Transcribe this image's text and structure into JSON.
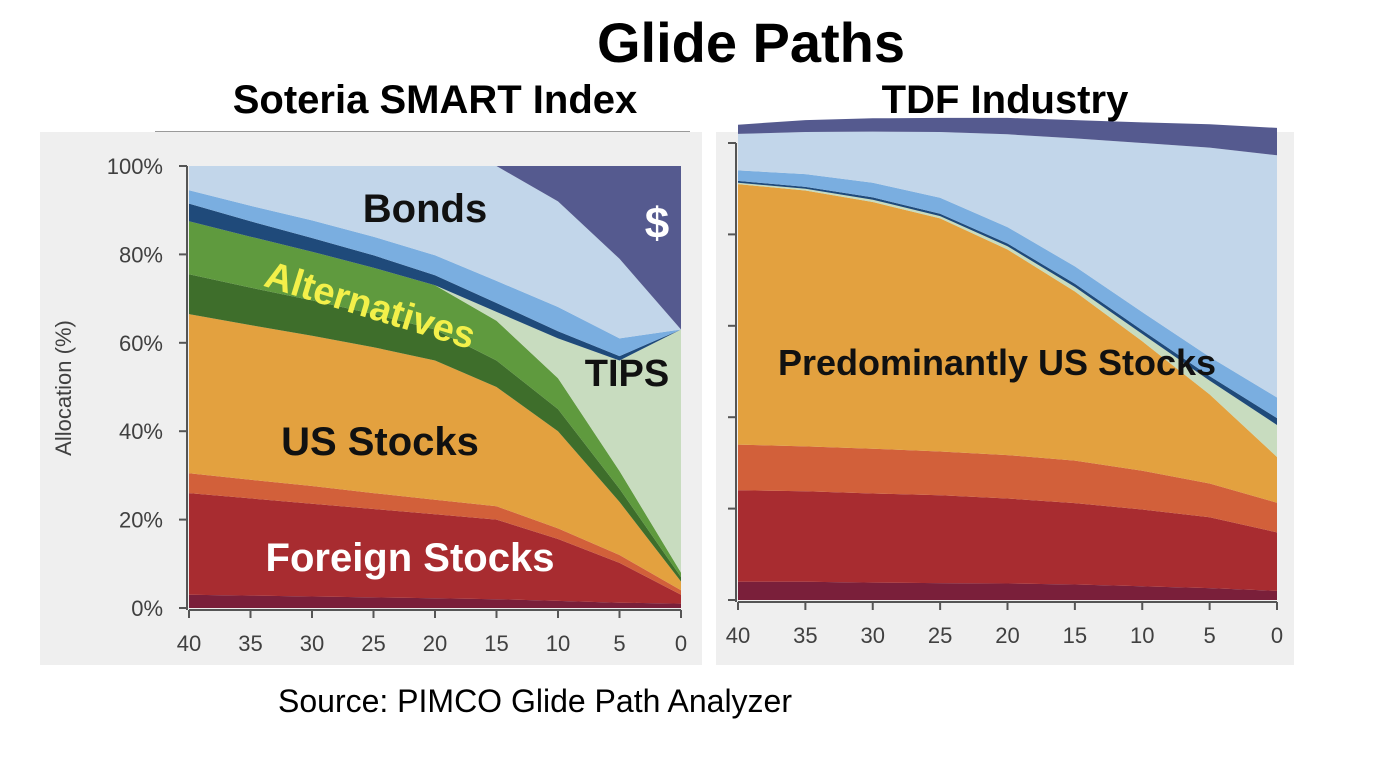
{
  "title": "Glide Paths",
  "source": "Source: PIMCO  Glide Path Analyzer",
  "colors": {
    "cash": "#555a8f",
    "bonds_light": "#c2d6ea",
    "bonds_mid": "#7aaee0",
    "bonds_dark": "#1f4a7a",
    "tips": "#c8dcbf",
    "alt_light": "#5f9a3e",
    "alt_dark": "#3e6e2b",
    "us_stocks": "#e3a13f",
    "foreign_light": "#d2603a",
    "foreign": "#a82c30",
    "em": "#7a1f3a",
    "panel_bg": "#efefef"
  },
  "chart_data": [
    {
      "type": "area",
      "title": "Soteria SMART Index",
      "ylabel": "Allocation (%)",
      "xlabel": "",
      "ylim": [
        0,
        100
      ],
      "x": [
        40,
        35,
        30,
        25,
        20,
        15,
        10,
        5,
        0
      ],
      "x_ticks": [
        "40",
        "35",
        "30",
        "25",
        "20",
        "15",
        "10",
        "5",
        "0"
      ],
      "y_ticks": [
        "0%",
        "20%",
        "40%",
        "60%",
        "80%",
        "100%"
      ],
      "series_order": [
        "em",
        "foreign",
        "foreign_light",
        "us_stocks",
        "alt_dark",
        "alt_light",
        "tips",
        "bonds_dark",
        "bonds_mid",
        "bonds_light",
        "cash"
      ],
      "series": [
        {
          "key": "em",
          "values": [
            3,
            2.8,
            2.6,
            2.4,
            2.2,
            2,
            1.6,
            1.2,
            1
          ]
        },
        {
          "key": "foreign",
          "values": [
            23,
            22,
            21,
            20,
            19,
            18,
            14,
            9,
            2
          ]
        },
        {
          "key": "foreign_light",
          "values": [
            4.5,
            4.2,
            4,
            3.6,
            3.3,
            3,
            2.4,
            1.8,
            1
          ]
        },
        {
          "key": "us_stocks",
          "values": [
            36,
            35,
            34,
            33,
            31.5,
            27,
            22,
            12,
            2
          ]
        },
        {
          "key": "alt_dark",
          "values": [
            9,
            8.5,
            8,
            7.5,
            7,
            6,
            5,
            3,
            1
          ]
        },
        {
          "key": "alt_light",
          "values": [
            12,
            11.5,
            11,
            10.5,
            10,
            9,
            7,
            4,
            1
          ]
        },
        {
          "key": "tips",
          "values": [
            0,
            0,
            0,
            0,
            0,
            2,
            9,
            25,
            55
          ]
        },
        {
          "key": "bonds_dark",
          "values": [
            4,
            3.5,
            3.1,
            2.8,
            2.3,
            2,
            1.6,
            1,
            0
          ]
        },
        {
          "key": "bonds_mid",
          "values": [
            3,
            3.5,
            4,
            4.2,
            4.5,
            5,
            5.5,
            4,
            0
          ]
        },
        {
          "key": "bonds_light",
          "values": [
            5.5,
            9,
            12.3,
            16,
            20.2,
            26,
            23.9,
            18,
            0
          ]
        },
        {
          "key": "cash",
          "values": [
            0,
            0,
            0,
            0,
            0,
            0,
            8,
            21,
            37
          ]
        }
      ],
      "labels": {
        "bonds": "Bonds",
        "cash": "$",
        "alternatives": "Alternatives",
        "tips": "TIPS",
        "us_stocks": "US Stocks",
        "foreign_stocks": "Foreign Stocks"
      }
    },
    {
      "type": "area",
      "title": "TDF Industry",
      "ylim": [
        0,
        100
      ],
      "x": [
        40,
        35,
        30,
        25,
        20,
        15,
        10,
        5,
        0
      ],
      "x_ticks": [
        "40",
        "35",
        "30",
        "25",
        "20",
        "15",
        "10",
        "5",
        "0"
      ],
      "series_order": [
        "em",
        "foreign",
        "foreign_light",
        "us_stocks",
        "tips",
        "bonds_dark",
        "bonds_mid",
        "bonds_light",
        "cash"
      ],
      "series": [
        {
          "key": "em",
          "values": [
            4,
            4,
            3.8,
            3.7,
            3.6,
            3.4,
            3,
            2.6,
            2
          ]
        },
        {
          "key": "foreign",
          "values": [
            20,
            19.8,
            19.5,
            19.2,
            18.6,
            17.8,
            16.8,
            15.5,
            12.8
          ]
        },
        {
          "key": "foreign_light",
          "values": [
            10,
            9.8,
            9.8,
            9.6,
            9.5,
            9.3,
            8.5,
            7.4,
            6.5
          ]
        },
        {
          "key": "us_stocks",
          "values": [
            57,
            56,
            54,
            51,
            45,
            37,
            28.3,
            19.5,
            10
          ]
        },
        {
          "key": "tips",
          "values": [
            0.3,
            0.4,
            0.5,
            0.5,
            0.7,
            1,
            1.6,
            3,
            7
          ]
        },
        {
          "key": "bonds_dark",
          "values": [
            0.4,
            0.4,
            0.5,
            0.5,
            0.6,
            0.7,
            0.8,
            1,
            1.5
          ]
        },
        {
          "key": "bonds_mid",
          "values": [
            2.3,
            2.8,
            3.2,
            3.5,
            3.6,
            3.8,
            4,
            4.2,
            4.5
          ]
        },
        {
          "key": "bonds_light",
          "values": [
            8,
            9.2,
            11.2,
            14.4,
            20.3,
            28,
            37,
            45.8,
            53
          ]
        },
        {
          "key": "cash",
          "values": [
            2,
            2.6,
            2.9,
            3.1,
            3.6,
            4,
            4.5,
            5.1,
            6
          ]
        }
      ],
      "labels": {
        "us_stocks": "Predominantly US Stocks"
      }
    }
  ]
}
